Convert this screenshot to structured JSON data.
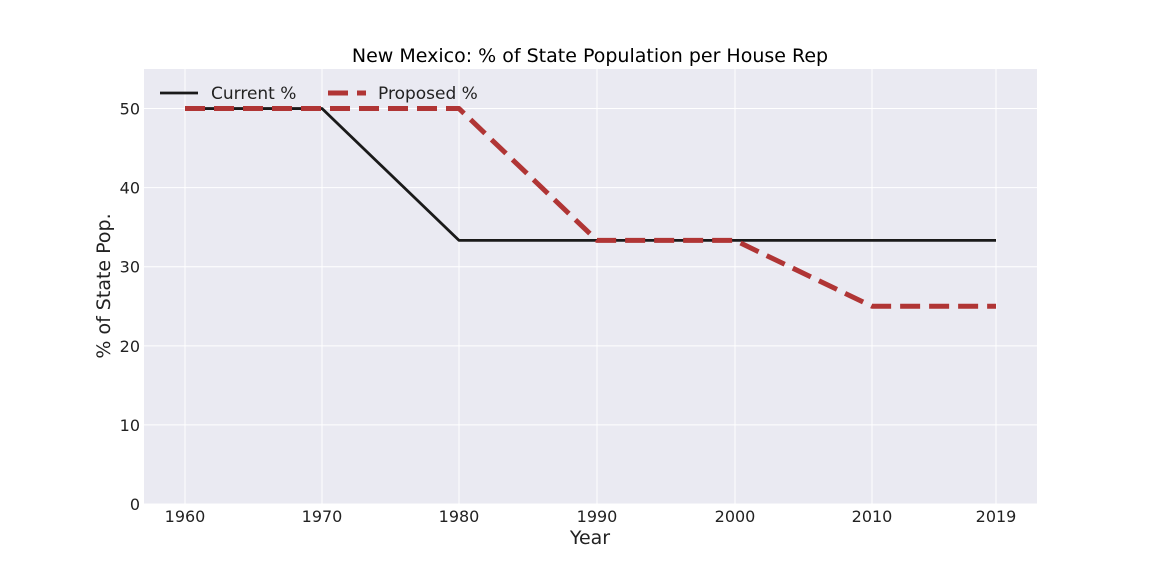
{
  "chart_data": {
    "type": "line",
    "title": "New Mexico: % of State Population per House Rep",
    "xlabel": "Year",
    "ylabel": "% of State Pop.",
    "x": [
      1960,
      1970,
      1980,
      1990,
      2000,
      2010,
      2019
    ],
    "x_tick_labels": [
      "1960",
      "1970",
      "1980",
      "1990",
      "2000",
      "2010",
      "2019"
    ],
    "y_ticks": [
      0,
      10,
      20,
      30,
      40,
      50
    ],
    "y_tick_labels": [
      "0",
      "10",
      "20",
      "30",
      "40",
      "50"
    ],
    "ylim": [
      0,
      55
    ],
    "grid": true,
    "legend_position": "top-left",
    "series": [
      {
        "name": "Current %",
        "values": [
          50.0,
          50.0,
          33.33,
          33.33,
          33.33,
          33.33,
          33.33
        ],
        "color": "#1a1a1a",
        "style": "solid"
      },
      {
        "name": "Proposed %",
        "values": [
          50.0,
          50.0,
          50.0,
          33.33,
          33.33,
          25.0,
          25.0
        ],
        "color": "#b03535",
        "style": "dashed"
      }
    ],
    "background_color": "#eaeaf2",
    "grid_color": "#ffffff"
  }
}
